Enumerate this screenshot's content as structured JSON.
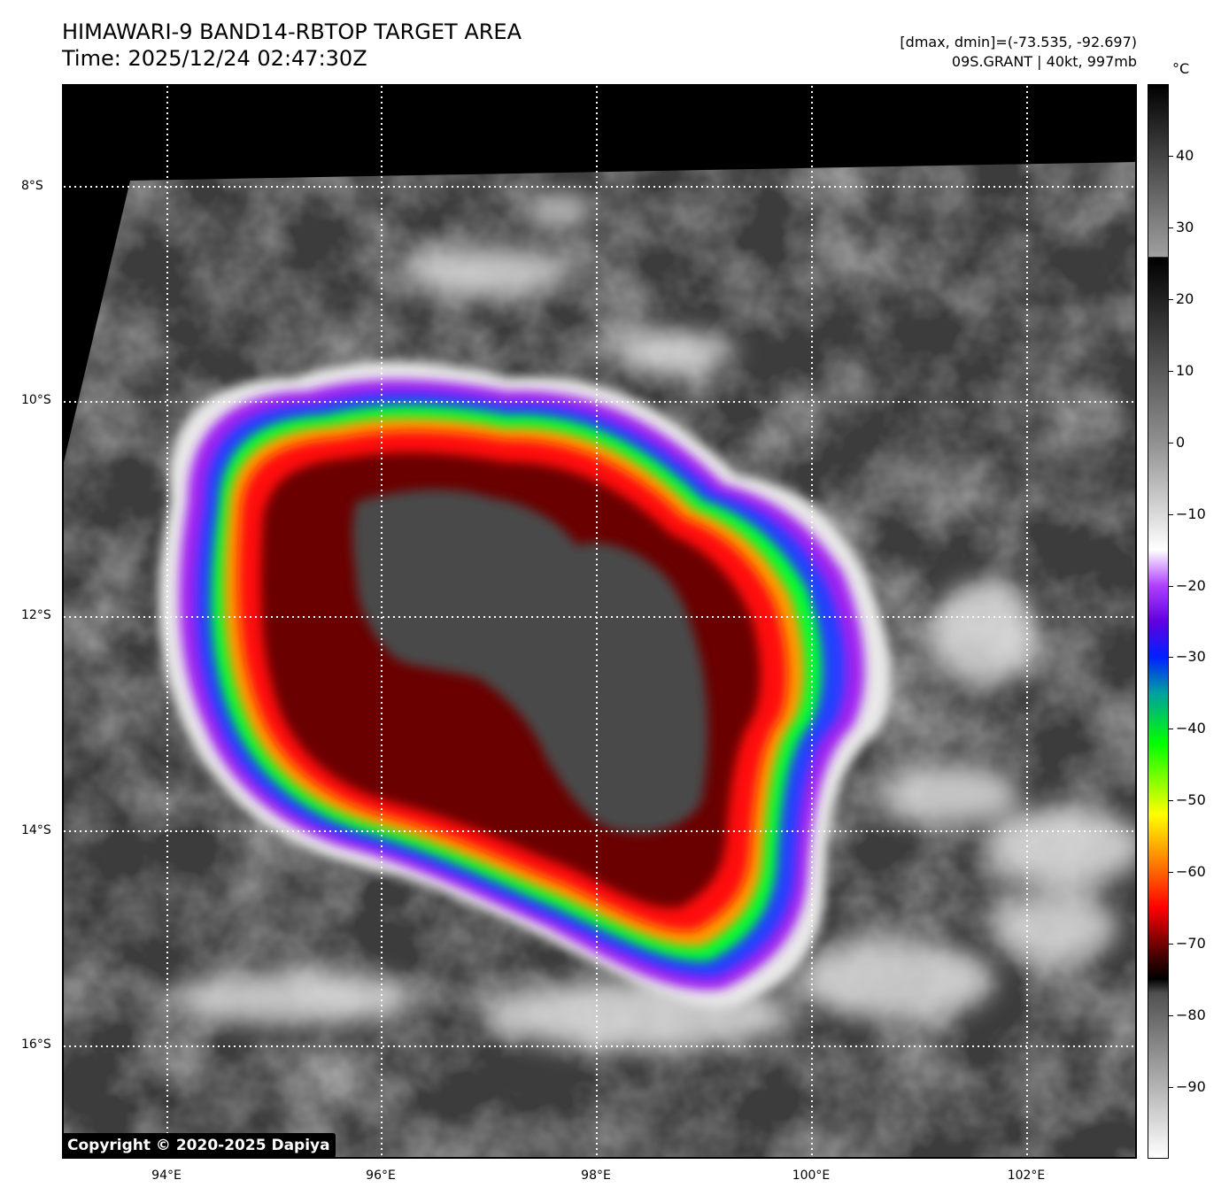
{
  "header": {
    "title": "HIMAWARI-9 BAND14-RBTOP TARGET AREA",
    "time": "Time: 2025/12/24 02:47:30Z",
    "range": "[dmax, dmin]=(-73.535, -92.697)",
    "storm": "09S.GRANT | 40kt, 997mb"
  },
  "map": {
    "lat_labels": [
      "8°S",
      "10°S",
      "12°S",
      "14°S",
      "16°S"
    ],
    "lon_labels": [
      "94°E",
      "96°E",
      "98°E",
      "100°E",
      "102°E"
    ],
    "gridline_style": "dotted white"
  },
  "colorbar": {
    "unit": "°C",
    "labels": [
      "40",
      "30",
      "20",
      "10",
      "0",
      "−10",
      "−20",
      "−30",
      "−40",
      "−50",
      "−60",
      "−70",
      "−80",
      "−90"
    ],
    "range": [
      -100,
      50
    ]
  },
  "copyright": "Copyright © 2020-2025 Dapiya",
  "colors": {
    "red": "#ff0000",
    "black_core": "#000000",
    "orange": "#ff8c00",
    "yellow": "#ffff00",
    "green": "#00ff00",
    "blue": "#2040ff",
    "purple": "#a020f0",
    "gray_cloud": "#d0d0d0"
  }
}
